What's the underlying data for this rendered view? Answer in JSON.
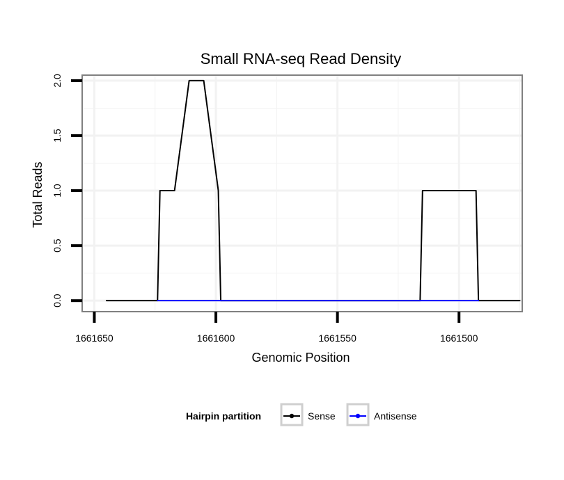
{
  "chart_data": {
    "type": "line",
    "title": "Small RNA-seq Read Density",
    "xlabel": "Genomic Position",
    "ylabel": "Total Reads",
    "xlim": [
      1661655,
      1661474
    ],
    "ylim": [
      -0.1,
      2.05
    ],
    "x_reversed": true,
    "xticks": [
      1661650,
      1661600,
      1661550,
      1661500
    ],
    "yticks": [
      0.0,
      0.5,
      1.0,
      1.5,
      2.0
    ],
    "xtick_labels": [
      "1661650",
      "1661600",
      "1661550",
      "1661500"
    ],
    "ytick_labels": [
      "0.0",
      "0.5",
      "1.0",
      "1.5",
      "2.0"
    ],
    "grid": true,
    "legend": {
      "title": "Hairpin partition",
      "placement": "bottom"
    },
    "series": [
      {
        "name": "Sense",
        "color": "#000000",
        "x": [
          1661645,
          1661624,
          1661623,
          1661617,
          1661611,
          1661605,
          1661599,
          1661598,
          1661516,
          1661515,
          1661493,
          1661492,
          1661475
        ],
        "y": [
          0,
          0,
          1,
          1,
          2,
          2,
          1,
          0,
          0,
          1,
          1,
          0,
          0
        ]
      },
      {
        "name": "Antisense",
        "color": "#0000ff",
        "x": [
          1661624,
          1661598,
          1661516,
          1661492
        ],
        "y": [
          0,
          0,
          0,
          0
        ]
      }
    ]
  }
}
